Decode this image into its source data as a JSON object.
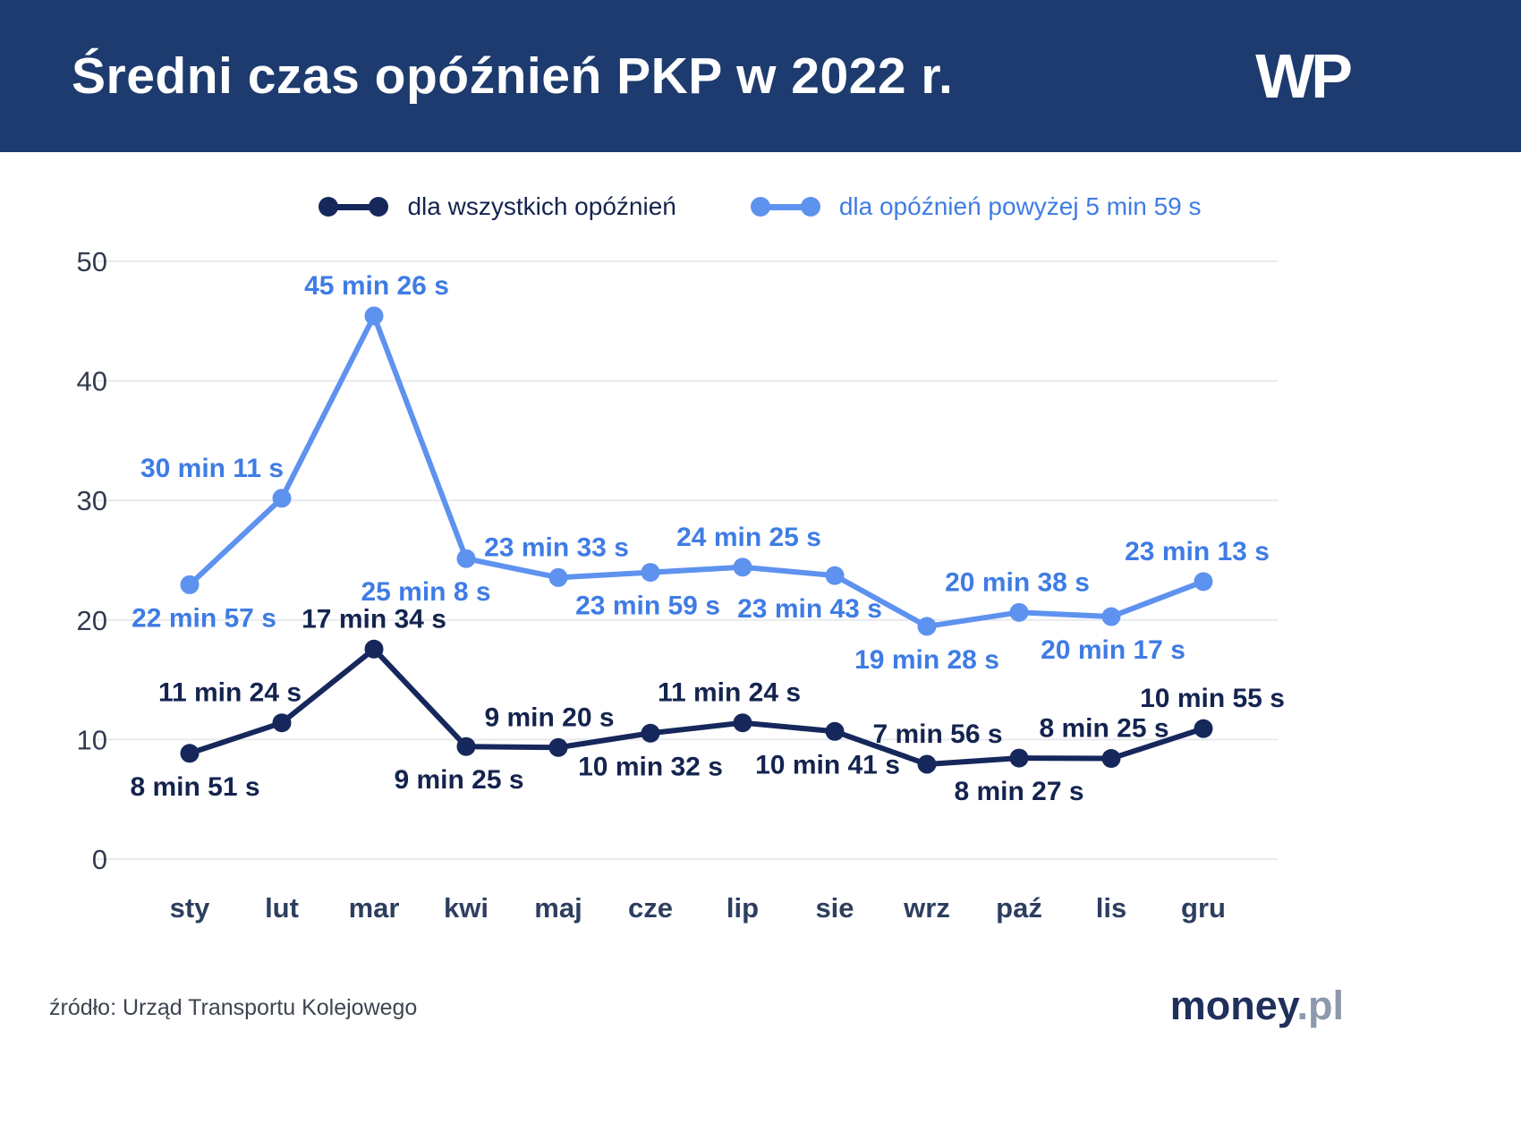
{
  "header": {
    "title": "Średni czas opóźnień PKP w 2022 r.",
    "logo_text": "WP"
  },
  "legend": {
    "items": [
      {
        "label": "dla wszystkich opóźnień",
        "color": "#16275b",
        "text_color": "#14244f"
      },
      {
        "label": "dla opóźnień powyżej 5 min 59 s",
        "color": "#5e92ef",
        "text_color": "#3f7ce4"
      }
    ]
  },
  "footer": {
    "source": "źródło: Urząd Transportu Kolejowego",
    "brand_main": "money",
    "brand_suffix": ".pl"
  },
  "chart_data": {
    "type": "line",
    "title": "Średni czas opóźnień PKP w 2022 r.",
    "categories": [
      "sty",
      "lut",
      "mar",
      "kwi",
      "maj",
      "cze",
      "lip",
      "sie",
      "wrz",
      "paź",
      "lis",
      "gru"
    ],
    "y_ticks": [
      0,
      10,
      20,
      30,
      40,
      50
    ],
    "ylim": [
      0,
      50
    ],
    "grid": "horizontal",
    "legend_position": "top",
    "series": [
      {
        "name": "dla wszystkich opóźnień",
        "color": "#16275b",
        "label_color": "#14244f",
        "points": [
          {
            "label": "8 min 51 s",
            "min": 8,
            "sec": 51,
            "pos": "below",
            "dx": 6
          },
          {
            "label": "11 min 24 s",
            "min": 11,
            "sec": 24,
            "pos": "above",
            "dx": -58
          },
          {
            "label": "17 min 34 s",
            "min": 17,
            "sec": 34,
            "pos": "above",
            "dx": 0
          },
          {
            "label": "9 min 25 s",
            "min": 9,
            "sec": 25,
            "pos": "below",
            "dx": -8
          },
          {
            "label": "9 min 20 s",
            "min": 9,
            "sec": 20,
            "pos": "above",
            "dx": -10
          },
          {
            "label": "10 min 32 s",
            "min": 10,
            "sec": 32,
            "pos": "below",
            "dx": 0
          },
          {
            "label": "11 min 24 s",
            "min": 11,
            "sec": 24,
            "pos": "above",
            "dx": -15
          },
          {
            "label": "10 min 41 s",
            "min": 10,
            "sec": 41,
            "pos": "below",
            "dx": -8
          },
          {
            "label": "7 min 56 s",
            "min": 7,
            "sec": 56,
            "pos": "above",
            "dx": 12
          },
          {
            "label": "8 min 27 s",
            "min": 8,
            "sec": 27,
            "pos": "below",
            "dx": 0
          },
          {
            "label": "8 min 25 s",
            "min": 8,
            "sec": 25,
            "pos": "above",
            "dx": -8
          },
          {
            "label": "10 min 55 s",
            "min": 10,
            "sec": 55,
            "pos": "above",
            "dx": 10
          }
        ]
      },
      {
        "name": "dla opóźnień powyżej 5 min 59 s",
        "color": "#5e92ef",
        "label_color": "#3f7ce4",
        "points": [
          {
            "label": "22 min 57 s",
            "min": 22,
            "sec": 57,
            "pos": "below",
            "dx": 16
          },
          {
            "label": "30 min 11 s",
            "min": 30,
            "sec": 11,
            "pos": "above",
            "dx": -78
          },
          {
            "label": "45 min 26 s",
            "min": 45,
            "sec": 26,
            "pos": "above",
            "dx": 3
          },
          {
            "label": "25 min 8 s",
            "min": 25,
            "sec": 8,
            "pos": "below",
            "dx": -45
          },
          {
            "label": "23 min 33 s",
            "min": 23,
            "sec": 33,
            "pos": "above",
            "dx": -2
          },
          {
            "label": "23 min 59 s",
            "min": 23,
            "sec": 59,
            "pos": "below",
            "dx": -3
          },
          {
            "label": "24 min 25 s",
            "min": 24,
            "sec": 25,
            "pos": "above",
            "dx": 7
          },
          {
            "label": "23 min 43 s",
            "min": 23,
            "sec": 43,
            "pos": "below",
            "dx": -28
          },
          {
            "label": "19 min 28 s",
            "min": 19,
            "sec": 28,
            "pos": "below",
            "dx": 0
          },
          {
            "label": "20 min 38 s",
            "min": 20,
            "sec": 38,
            "pos": "above",
            "dx": -2
          },
          {
            "label": "20 min 17 s",
            "min": 20,
            "sec": 17,
            "pos": "below",
            "dx": 2
          },
          {
            "label": "23 min 13 s",
            "min": 23,
            "sec": 13,
            "pos": "above",
            "dx": -7
          }
        ]
      }
    ]
  }
}
